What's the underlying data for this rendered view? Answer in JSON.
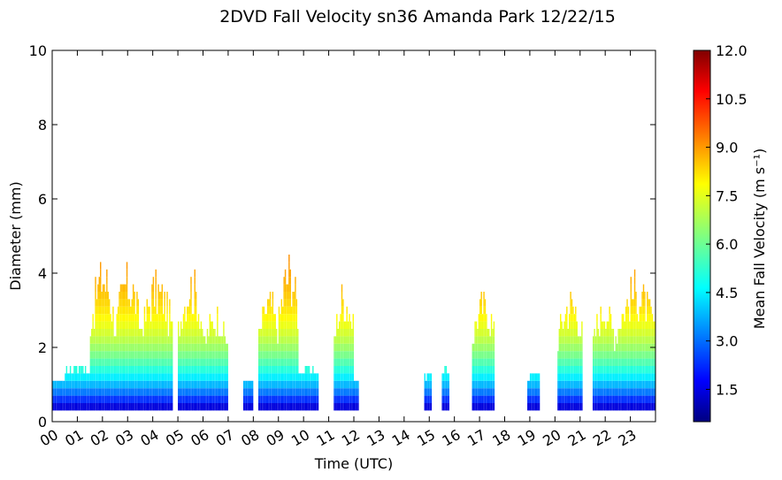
{
  "chart_data": {
    "type": "heatmap",
    "title": "2DVD Fall Velocity sn36 Amanda Park 12/22/15",
    "xlabel": "Time (UTC)",
    "ylabel": "Diameter (mm)",
    "colorbar_label": "Mean Fall Velocity (m s⁻¹)",
    "xlim": [
      0,
      24
    ],
    "ylim": [
      0,
      10
    ],
    "x_tick_labels": [
      "00",
      "01",
      "02",
      "03",
      "04",
      "05",
      "06",
      "07",
      "08",
      "09",
      "10",
      "11",
      "12",
      "13",
      "14",
      "15",
      "16",
      "17",
      "18",
      "19",
      "20",
      "21",
      "22",
      "23"
    ],
    "y_ticks": [
      0,
      2,
      4,
      6,
      8,
      10
    ],
    "y_tick_labels": [
      "0",
      "2",
      "4",
      "6",
      "8",
      "10"
    ],
    "colorbar_range": [
      0.5,
      12.0
    ],
    "colorbar_ticks": [
      1.5,
      3.0,
      4.5,
      6.0,
      7.5,
      9.0,
      10.5,
      12.0
    ],
    "colorbar_tick_labels": [
      "1.5",
      "3.0",
      "4.5",
      "6.0",
      "7.5",
      "9.0",
      "10.5",
      "12.0"
    ],
    "colormap": "jet",
    "diameter_bin_mm": 0.2,
    "precip_periods": [
      {
        "start_hr": 0.0,
        "end_hr": 0.5,
        "max_diameter_mm": 1.0
      },
      {
        "start_hr": 0.5,
        "end_hr": 1.5,
        "max_diameter_mm": 1.5
      },
      {
        "start_hr": 1.5,
        "end_hr": 2.5,
        "max_diameter_mm": 4.5
      },
      {
        "start_hr": 2.5,
        "end_hr": 3.5,
        "max_diameter_mm": 4.3
      },
      {
        "start_hr": 3.5,
        "end_hr": 4.8,
        "max_diameter_mm": 4.0
      },
      {
        "start_hr": 5.0,
        "end_hr": 6.0,
        "max_diameter_mm": 4.2
      },
      {
        "start_hr": 6.0,
        "end_hr": 7.0,
        "max_diameter_mm": 3.1
      },
      {
        "start_hr": 7.6,
        "end_hr": 8.0,
        "max_diameter_mm": 1.0
      },
      {
        "start_hr": 8.2,
        "end_hr": 9.0,
        "max_diameter_mm": 3.6
      },
      {
        "start_hr": 9.0,
        "end_hr": 9.8,
        "max_diameter_mm": 4.6
      },
      {
        "start_hr": 9.8,
        "end_hr": 10.6,
        "max_diameter_mm": 1.4
      },
      {
        "start_hr": 11.2,
        "end_hr": 12.0,
        "max_diameter_mm": 3.8
      },
      {
        "start_hr": 12.0,
        "end_hr": 12.2,
        "max_diameter_mm": 1.0
      },
      {
        "start_hr": 14.8,
        "end_hr": 15.1,
        "max_diameter_mm": 1.2
      },
      {
        "start_hr": 15.5,
        "end_hr": 15.8,
        "max_diameter_mm": 1.4
      },
      {
        "start_hr": 16.7,
        "end_hr": 17.6,
        "max_diameter_mm": 3.6
      },
      {
        "start_hr": 18.9,
        "end_hr": 19.4,
        "max_diameter_mm": 1.2
      },
      {
        "start_hr": 20.1,
        "end_hr": 21.1,
        "max_diameter_mm": 3.6
      },
      {
        "start_hr": 21.5,
        "end_hr": 22.4,
        "max_diameter_mm": 3.4
      },
      {
        "start_hr": 22.4,
        "end_hr": 24.0,
        "max_diameter_mm": 4.0
      }
    ]
  }
}
